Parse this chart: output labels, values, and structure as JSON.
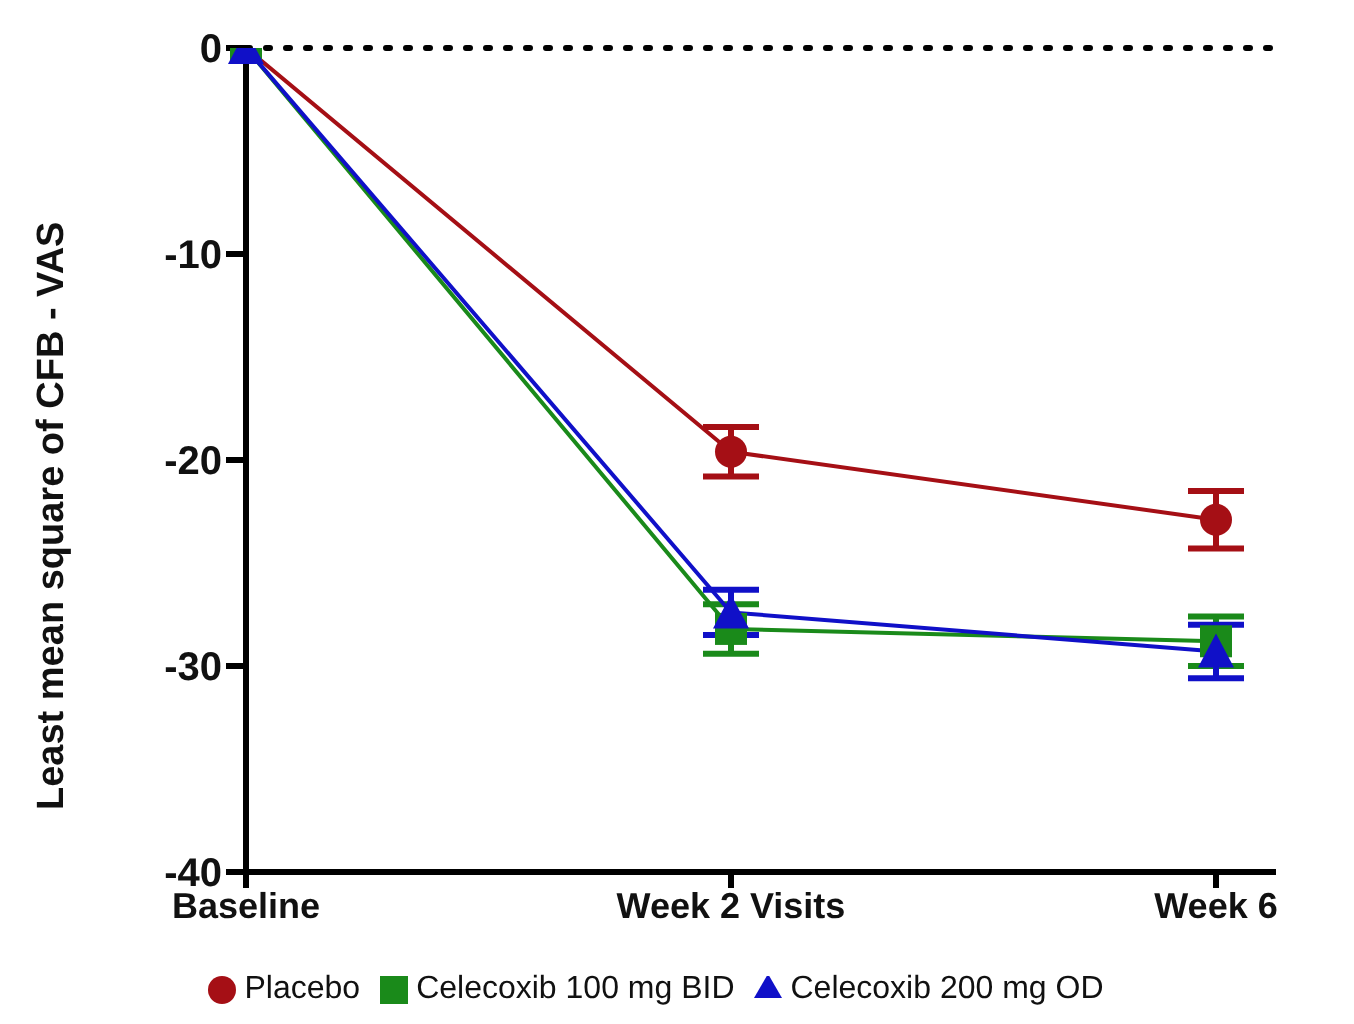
{
  "chart_data": {
    "type": "line",
    "ylabel": "Least mean square of CFB - VAS",
    "categories": [
      "Baseline",
      "Week 2 Visits",
      "Week 6"
    ],
    "series": [
      {
        "name": "Placebo",
        "color": "#a50f15",
        "marker": "circle",
        "values": [
          0,
          -19.6,
          -22.9
        ],
        "errors": [
          null,
          1.2,
          1.4
        ]
      },
      {
        "name": "Celecoxib 100 mg BID",
        "color": "#1a8a1a",
        "marker": "square",
        "values": [
          0,
          -28.2,
          -28.8
        ],
        "errors": [
          null,
          1.2,
          1.2
        ]
      },
      {
        "name": "Celecoxib 200 mg OD",
        "color": "#1010c8",
        "marker": "triangle",
        "values": [
          0,
          -27.4,
          -29.3
        ],
        "errors": [
          null,
          1.1,
          1.3
        ]
      }
    ],
    "ylim": [
      -40,
      0
    ],
    "yticks": [
      -40,
      -30,
      -20,
      -10,
      0
    ],
    "grid": false,
    "legend": "bottom",
    "line_style": "solid",
    "ref_lines": [
      {
        "axis": "y",
        "value": 0,
        "line_style": "dotted",
        "color": "#000000"
      }
    ]
  }
}
